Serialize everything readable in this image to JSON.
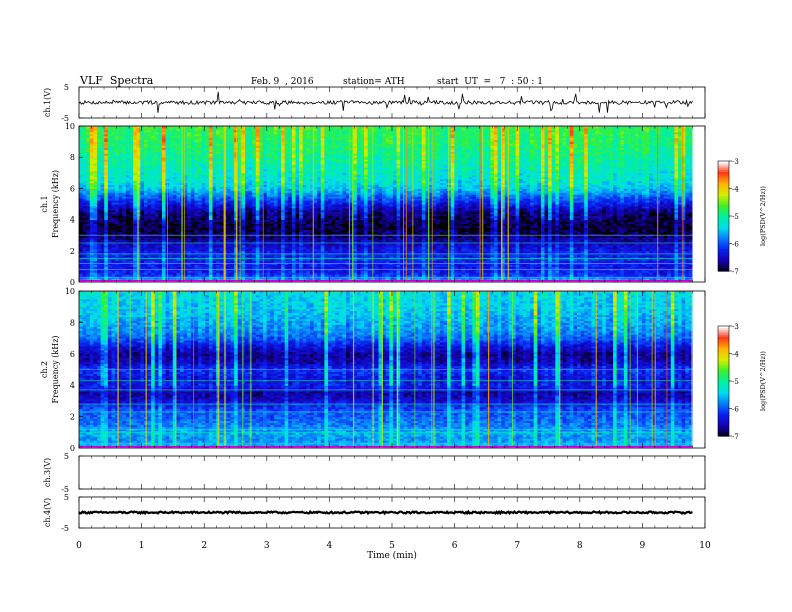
{
  "header": {
    "title": "VLF  Spectra",
    "date": "Feb. 9  , 2016",
    "station": "station= ATH",
    "start": "start  UT  =   7  : 50 : 1"
  },
  "chart_data": [
    {
      "type": "line",
      "panel": "ch1-waveform",
      "ylabel": "ch.1(V)",
      "ylim": [
        -5,
        5
      ],
      "y_ticks": [
        "5",
        "-5"
      ],
      "series": [
        {
          "mean": 0,
          "noise_amplitude": 0.6,
          "spike_amplitude": 3
        }
      ]
    },
    {
      "type": "heatmap",
      "panel": "ch1-spectrogram",
      "ylabel": "ch.1",
      "ylabel2": "Frequency  (kHz)",
      "ylim": [
        0,
        10
      ],
      "y_ticks": [
        "0",
        "2",
        "4",
        "6",
        "8",
        "10"
      ],
      "colorbar": {
        "label": "log(PSD(V^2/Hz))",
        "range": [
          -7,
          -3
        ],
        "ticks": [
          "-3",
          "-4",
          "-5",
          "-6",
          "-7"
        ]
      },
      "log_psd_profile": {
        "freq_khz": [
          0,
          0.5,
          1,
          1.5,
          2,
          2.5,
          3,
          3.5,
          4,
          4.5,
          5,
          5.5,
          6,
          6.5,
          7,
          7.5,
          8,
          8.5,
          9,
          9.5,
          10
        ],
        "value": [
          -5.3,
          -6.2,
          -6.3,
          -6.2,
          -6.3,
          -6.5,
          -6.8,
          -6.9,
          -6.8,
          -6.7,
          -6.3,
          -5.9,
          -5.5,
          -5.3,
          -5.2,
          -5.1,
          -5.0,
          -4.9,
          -4.8,
          -4.8,
          -4.7
        ]
      },
      "lines_khz": [
        0.3,
        0.8,
        1.2,
        1.5,
        1.8,
        2.5,
        3.0
      ]
    },
    {
      "type": "heatmap",
      "panel": "ch2-spectrogram",
      "ylabel": "ch.2",
      "ylabel2": "Frequency  (kHz)",
      "ylim": [
        0,
        10
      ],
      "y_ticks": [
        "0",
        "2",
        "4",
        "6",
        "8",
        "10"
      ],
      "colorbar": {
        "label": "log(PSD(V^2/Hz))",
        "range": [
          -7,
          -3
        ],
        "ticks": [
          "-3",
          "-4",
          "-5",
          "-6",
          "-7"
        ]
      },
      "log_psd_profile": {
        "freq_khz": [
          0,
          0.5,
          1,
          1.5,
          2,
          2.5,
          3,
          3.5,
          4,
          4.5,
          5,
          5.5,
          6,
          6.5,
          7,
          7.5,
          8,
          8.5,
          9,
          9.5,
          10
        ],
        "value": [
          -5.4,
          -5.7,
          -5.6,
          -5.8,
          -5.9,
          -6.0,
          -6.4,
          -6.6,
          -6.2,
          -6.3,
          -6.1,
          -6.5,
          -6.6,
          -6.3,
          -5.9,
          -5.7,
          -5.6,
          -5.5,
          -5.4,
          -5.4,
          -5.3
        ]
      },
      "lines_khz": [
        0.3,
        1.0,
        1.2,
        2.3,
        2.8,
        3.7,
        4.3,
        5.0
      ]
    },
    {
      "type": "line",
      "panel": "ch3-waveform",
      "ylabel": "ch.3(V)",
      "ylim": [
        -5,
        5
      ],
      "y_ticks": [
        "5",
        "-5"
      ],
      "series": []
    },
    {
      "type": "line",
      "panel": "ch4-waveform",
      "ylabel": "ch.4(V)",
      "ylim": [
        -5,
        5
      ],
      "y_ticks": [
        "5",
        "-5"
      ],
      "series": [
        {
          "mean": 0,
          "noise_amplitude": 0.3,
          "spike_amplitude": 0
        }
      ]
    }
  ],
  "x_axis": {
    "label": "Time  (min)",
    "range": [
      0,
      10
    ],
    "data_end_min": 9.8,
    "ticks": [
      "0",
      "1",
      "2",
      "3",
      "4",
      "5",
      "6",
      "7",
      "8",
      "9",
      "10"
    ]
  },
  "colorscale": [
    "#000000",
    "#1500ab",
    "#0a1ef0",
    "#0a78ff",
    "#00dcf0",
    "#00f0a0",
    "#3cf032",
    "#d2f000",
    "#ffb400",
    "#ff3c14",
    "#ffffff"
  ],
  "colors": {
    "axis": "#000000",
    "trace": "#000000",
    "reference_line": "#c800c8"
  }
}
